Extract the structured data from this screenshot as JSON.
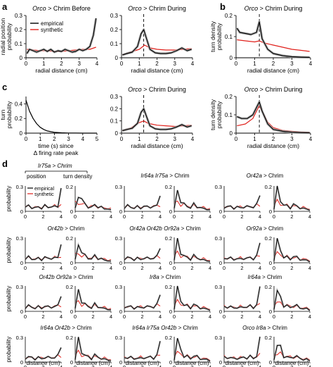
{
  "colors": {
    "empirical": "#000000",
    "synthetic": "#e0201b",
    "band": "#a8a8a8",
    "axis": "#000000"
  },
  "panel_letters": [
    "a",
    "b",
    "c",
    "d"
  ],
  "chart_data": [
    {
      "type": "line",
      "panel": "a",
      "title": "Orco > Chrim Before",
      "xlabel": "radial distance (cm)",
      "ylabel": "radial position probability",
      "xlim": [
        0,
        4
      ],
      "ylim": [
        0,
        0.3
      ],
      "xticks": [
        "0",
        "1",
        "2",
        "3",
        "4"
      ],
      "yticks": [
        "0",
        "0.1",
        "0.2",
        "0.3"
      ],
      "legend": [
        "empirical",
        "synthetic"
      ],
      "legend_position": "top-left",
      "series": [
        {
          "name": "empirical",
          "x": [
            0.05,
            0.2,
            0.4,
            0.6,
            0.8,
            1.0,
            1.2,
            1.4,
            1.6,
            1.8,
            2.0,
            2.2,
            2.4,
            2.6,
            2.8,
            3.0,
            3.2,
            3.4,
            3.6,
            3.8,
            3.95
          ],
          "y": [
            0.03,
            0.06,
            0.05,
            0.04,
            0.05,
            0.06,
            0.045,
            0.06,
            0.04,
            0.05,
            0.045,
            0.06,
            0.05,
            0.04,
            0.045,
            0.06,
            0.05,
            0.06,
            0.08,
            0.16,
            0.28
          ]
        },
        {
          "name": "synthetic",
          "x": [
            0.05,
            0.4,
            0.8,
            1.2,
            1.6,
            2.0,
            2.4,
            2.8,
            3.2,
            3.6,
            3.95
          ],
          "y": [
            0.06,
            0.055,
            0.05,
            0.05,
            0.045,
            0.045,
            0.05,
            0.055,
            0.06,
            0.06,
            0.075
          ]
        }
      ]
    },
    {
      "type": "line",
      "panel": "a",
      "title": "Orco > Chrim During",
      "xlabel": "radial distance (cm)",
      "xlim": [
        0,
        4
      ],
      "ylim": [
        0,
        0.3
      ],
      "xticks": [
        "0",
        "1",
        "2",
        "3",
        "4"
      ],
      "yticks": [
        "0",
        "0.1",
        "0.2",
        "0.3"
      ],
      "dashed_line_x": 1.25,
      "series": [
        {
          "name": "empirical",
          "x": [
            0.05,
            0.3,
            0.6,
            0.9,
            1.1,
            1.25,
            1.4,
            1.6,
            1.9,
            2.2,
            2.5,
            2.8,
            3.1,
            3.4,
            3.7,
            3.95
          ],
          "y": [
            0.02,
            0.03,
            0.04,
            0.08,
            0.17,
            0.2,
            0.14,
            0.06,
            0.035,
            0.03,
            0.03,
            0.035,
            0.05,
            0.07,
            0.05,
            0.06
          ]
        },
        {
          "name": "synthetic",
          "x": [
            0.05,
            0.5,
            1.0,
            1.3,
            1.6,
            2.0,
            2.5,
            3.0,
            3.5,
            3.95
          ],
          "y": [
            0.02,
            0.04,
            0.06,
            0.09,
            0.07,
            0.06,
            0.055,
            0.055,
            0.06,
            0.065
          ]
        }
      ]
    },
    {
      "type": "line",
      "panel": "b",
      "title": "Orco > Chrim During",
      "xlabel": "radial distance (cm)",
      "ylabel": "turn density probability",
      "xlim": [
        0,
        4
      ],
      "ylim": [
        0,
        0.2
      ],
      "xticks": [
        "0",
        "1",
        "2",
        "3",
        "4"
      ],
      "yticks": [
        "0",
        "0.1",
        "0.2"
      ],
      "dashed_line_x": 1.25,
      "series": [
        {
          "name": "empirical",
          "x": [
            0.05,
            0.2,
            0.5,
            0.8,
            1.1,
            1.25,
            1.4,
            1.7,
            2.0,
            2.5,
            3.0,
            3.5,
            3.95
          ],
          "y": [
            0.14,
            0.12,
            0.115,
            0.11,
            0.12,
            0.17,
            0.09,
            0.04,
            0.02,
            0.01,
            0.005,
            0.003,
            0.002
          ]
        },
        {
          "name": "synthetic",
          "x": [
            0.05,
            0.5,
            1.0,
            1.25,
            1.5,
            2.0,
            2.5,
            3.0,
            3.5,
            3.95
          ],
          "y": [
            0.085,
            0.08,
            0.075,
            0.08,
            0.07,
            0.06,
            0.05,
            0.04,
            0.035,
            0.03
          ]
        }
      ]
    },
    {
      "type": "line",
      "panel": "c",
      "xlabel": "time (s) since Δ firing rate peak",
      "ylabel": "turn probability",
      "xlim": [
        0,
        5
      ],
      "ylim": [
        0,
        0.5
      ],
      "xticks": [
        "0",
        "1",
        "2",
        "3",
        "4",
        "5"
      ],
      "yticks": [
        "0",
        "0.2",
        "0.4"
      ],
      "series": [
        {
          "name": "empirical",
          "x": [
            0,
            0.25,
            0.5,
            0.75,
            1.0,
            1.25,
            1.5,
            1.75,
            2.0,
            2.5,
            3.0,
            3.5,
            4.0,
            4.5,
            5.0
          ],
          "y": [
            0.45,
            0.3,
            0.2,
            0.13,
            0.08,
            0.05,
            0.03,
            0.02,
            0.012,
            0.005,
            0.002,
            0.001,
            0,
            0,
            0
          ]
        }
      ]
    },
    {
      "type": "line",
      "panel": "c",
      "title": "Orco > Chrim During",
      "xlabel": "radial distance (cm)",
      "xlim": [
        0,
        4
      ],
      "ylim": [
        0,
        0.3
      ],
      "xticks": [
        "0",
        "1",
        "2",
        "3",
        "4"
      ],
      "yticks": [
        "0",
        "0.1",
        "0.2",
        "0.3"
      ],
      "dashed_line_x": 1.25,
      "series": [
        {
          "name": "empirical",
          "x": [
            0.05,
            0.3,
            0.6,
            0.9,
            1.1,
            1.25,
            1.4,
            1.6,
            1.9,
            2.2,
            2.5,
            2.8,
            3.1,
            3.4,
            3.7,
            3.95
          ],
          "y": [
            0.02,
            0.03,
            0.04,
            0.08,
            0.17,
            0.2,
            0.14,
            0.06,
            0.035,
            0.03,
            0.03,
            0.035,
            0.05,
            0.07,
            0.05,
            0.06
          ]
        },
        {
          "name": "synthetic",
          "x": [
            0.05,
            0.5,
            0.9,
            1.25,
            1.5,
            2.0,
            2.5,
            3.0,
            3.5,
            3.95
          ],
          "y": [
            0.02,
            0.04,
            0.08,
            0.1,
            0.08,
            0.065,
            0.06,
            0.055,
            0.06,
            0.065
          ]
        }
      ]
    },
    {
      "type": "line",
      "panel": "c",
      "title": "Orco > Chrim During",
      "xlabel": "radial distance (cm)",
      "ylabel": "turn density probability",
      "xlim": [
        0,
        4
      ],
      "ylim": [
        0,
        0.2
      ],
      "xticks": [
        "0",
        "1",
        "2",
        "3",
        "4"
      ],
      "yticks": [
        "0",
        "0.1",
        "0.2"
      ],
      "dashed_line_x": 1.25,
      "series": [
        {
          "name": "empirical",
          "x": [
            0.05,
            0.3,
            0.6,
            0.9,
            1.1,
            1.25,
            1.4,
            1.7,
            2.0,
            2.5,
            3.0,
            3.5,
            3.95
          ],
          "y": [
            0.09,
            0.08,
            0.08,
            0.1,
            0.14,
            0.17,
            0.12,
            0.05,
            0.02,
            0.01,
            0.005,
            0.003,
            0.002
          ]
        },
        {
          "name": "synthetic",
          "x": [
            0.05,
            0.5,
            0.9,
            1.1,
            1.25,
            1.4,
            1.7,
            2.0,
            2.5,
            3.0,
            3.5,
            3.95
          ],
          "y": [
            0.04,
            0.05,
            0.08,
            0.12,
            0.15,
            0.12,
            0.06,
            0.03,
            0.015,
            0.01,
            0.006,
            0.004
          ]
        }
      ]
    }
  ],
  "panel_d": {
    "header_line": "Ir75a > Chrim",
    "col_position": "position",
    "col_turn_density": "turn density",
    "ylabel": "probability",
    "xlabel": "distance (cm)",
    "xticks": [
      "0",
      "2",
      "4"
    ],
    "legend": [
      "empirical",
      "synthetic"
    ],
    "rows": [
      {
        "titles": [
          "Ir75a > Chrim",
          "Ir64a Ir75a > Chrim",
          "Or42a > Chrim"
        ],
        "ymax": [
          [
            "0.3",
            "0.2"
          ],
          [
            "0.3",
            "0.2"
          ],
          [
            "0.3",
            "0.2"
          ]
        ]
      },
      {
        "titles": [
          "Or42b > Chrim",
          "Or42a Or42b Or92a > Chrim",
          "Or92a > Chrim"
        ],
        "ymax": [
          [
            "0.3",
            "0.2"
          ],
          [
            "0.3",
            "0.2"
          ],
          [
            "0.3",
            "0.2"
          ]
        ]
      },
      {
        "titles": [
          "Or42b Or92a > Chrim",
          "Ir8a > Chrim",
          "Ir64a > Chrim"
        ],
        "ymax": [
          [
            "0.3",
            "0.2"
          ],
          [
            "0.3",
            "0.2"
          ],
          [
            "0.3",
            "0.2"
          ]
        ]
      },
      {
        "titles": [
          "Ir64a Or42b > Chrim",
          "Ir64a Ir75a Or42b > Chrim",
          "Orco Ir8a > Chrim"
        ],
        "ymax": [
          [
            "0.3",
            "0.2"
          ],
          [
            "0.3",
            "0.2"
          ],
          [
            "0.3",
            "0.2"
          ]
        ]
      }
    ]
  }
}
